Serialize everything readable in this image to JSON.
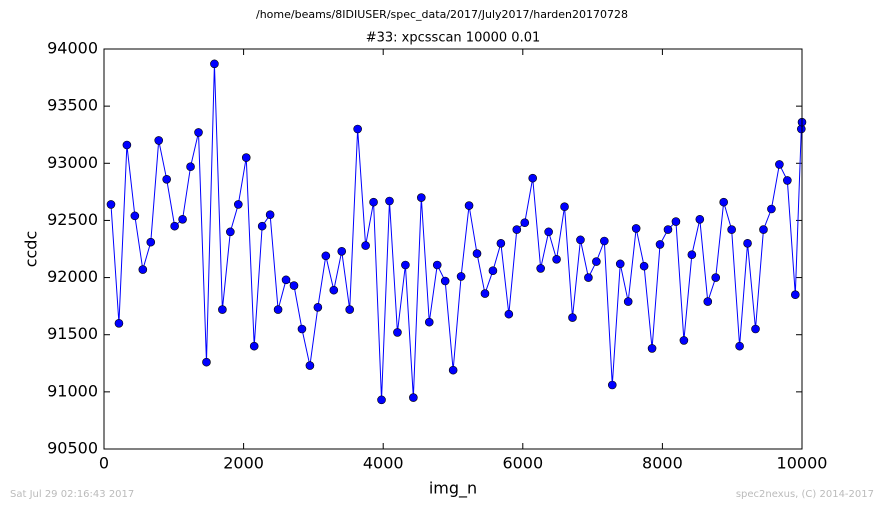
{
  "chart_data": {
    "type": "line",
    "suptitle": "/home/beams/8IDIUSER/spec_data/2017/July2017/harden20170728",
    "title": "#33: xpcsscan 10000 0.01",
    "xlabel": "img_n",
    "ylabel": "ccdc",
    "footer_left": "Sat Jul 29 02:16:43 2017",
    "footer_right": "spec2nexus, (C) 2014-2017",
    "xlim": [
      0,
      10000
    ],
    "xticks": [
      0,
      2000,
      4000,
      6000,
      8000,
      10000
    ],
    "ylim": [
      90500,
      94000
    ],
    "yticks": [
      90500,
      91000,
      91500,
      92000,
      92500,
      93000,
      93500,
      94000
    ],
    "x": [
      100,
      214,
      328,
      442,
      556,
      670,
      784,
      898,
      1012,
      1126,
      1240,
      1354,
      1468,
      1582,
      1696,
      1810,
      1924,
      2038,
      2152,
      2266,
      2380,
      2494,
      2608,
      2722,
      2836,
      2950,
      3064,
      3178,
      3292,
      3406,
      3520,
      3634,
      3748,
      3862,
      3976,
      4090,
      4204,
      4318,
      4432,
      4546,
      4660,
      4774,
      4888,
      5002,
      5116,
      5230,
      5344,
      5458,
      5572,
      5686,
      5800,
      5914,
      6028,
      6142,
      6256,
      6370,
      6484,
      6598,
      6712,
      6826,
      6940,
      7054,
      7168,
      7282,
      7396,
      7510,
      7624,
      7738,
      7852,
      7966,
      8080,
      8194,
      8308,
      8422,
      8536,
      8650,
      8764,
      8878,
      8992,
      9106,
      9220,
      9334,
      9448,
      9562,
      9676,
      9790,
      9904,
      9990,
      10000
    ],
    "series": [
      {
        "name": "ccdc",
        "color": "#0000ff",
        "values": [
          92640,
          91600,
          93160,
          92540,
          92070,
          92310,
          93200,
          92860,
          92450,
          92510,
          92970,
          93270,
          91260,
          93870,
          91720,
          92400,
          92640,
          93050,
          91400,
          92450,
          92550,
          91720,
          91980,
          91930,
          91550,
          91230,
          91740,
          92190,
          91890,
          92230,
          91720,
          93300,
          92280,
          92660,
          90930,
          92670,
          91520,
          92110,
          90950,
          92700,
          91610,
          92110,
          91970,
          91190,
          92010,
          92630,
          92210,
          91860,
          92060,
          92300,
          91680,
          92420,
          92480,
          92870,
          92080,
          92400,
          92160,
          92620,
          91650,
          92330,
          92000,
          92140,
          92320,
          91060,
          92120,
          91790,
          92430,
          92100,
          91380,
          92290,
          92420,
          92490,
          91450,
          92200,
          92510,
          91790,
          92000,
          92660,
          92420,
          91400,
          92300,
          91550,
          92420,
          92600,
          92990,
          92850,
          91850,
          93300,
          93360
        ]
      }
    ]
  }
}
